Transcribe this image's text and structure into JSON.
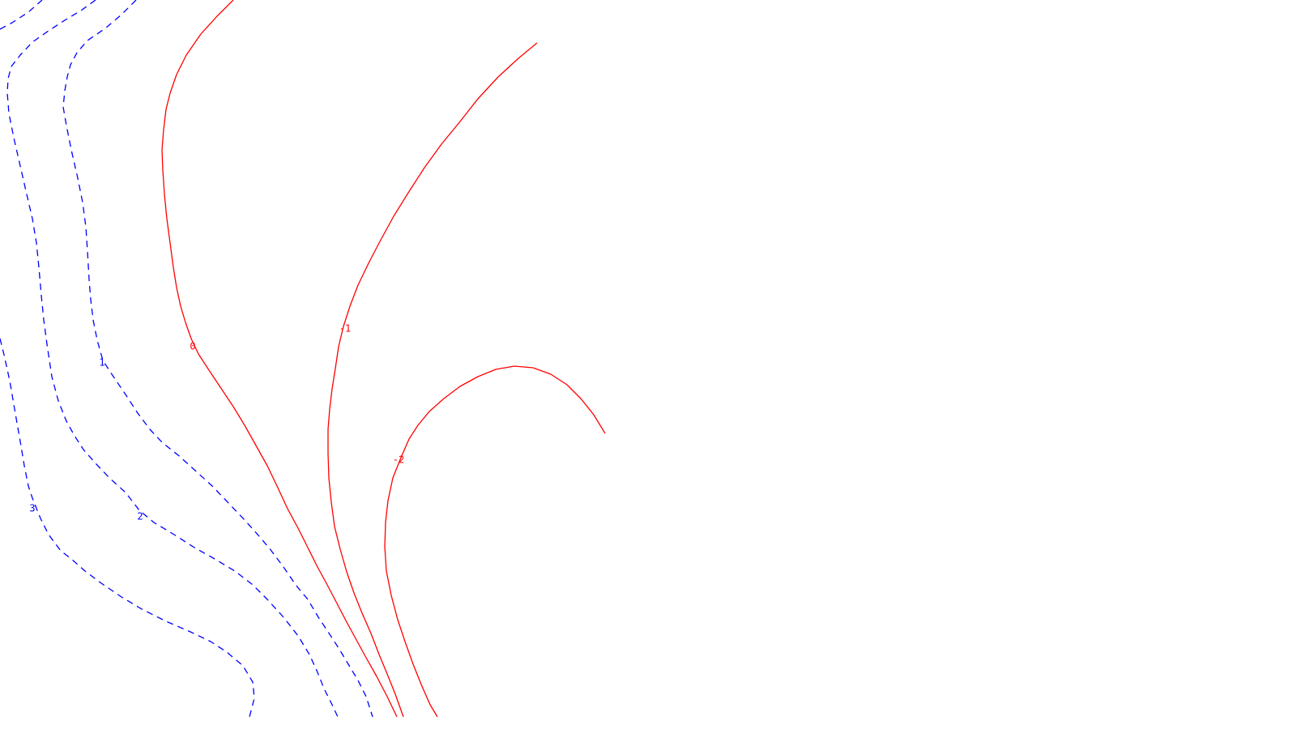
{
  "chart_data": {
    "type": "contour",
    "title": "",
    "xlabel": "",
    "ylabel": "",
    "grid": false,
    "colors": {
      "positive": "#0000ff",
      "zero_and_negative": "#ff0000",
      "background": "#ffffff"
    },
    "levels": [
      {
        "level": 3,
        "label": "3",
        "color": "#0000ff",
        "linestyle": "dashed"
      },
      {
        "level": 2,
        "label": "2",
        "color": "#0000ff",
        "linestyle": "dashed"
      },
      {
        "level": 1,
        "label": "1",
        "color": "#0000ff",
        "linestyle": "dashed"
      },
      {
        "level": 0,
        "label": "0",
        "color": "#ff0000",
        "linestyle": "solid"
      },
      {
        "level": -1,
        "label": "-1",
        "color": "#ff0000",
        "linestyle": "solid"
      },
      {
        "level": -2,
        "label": "-2",
        "color": "#ff0000",
        "linestyle": "solid"
      }
    ]
  }
}
